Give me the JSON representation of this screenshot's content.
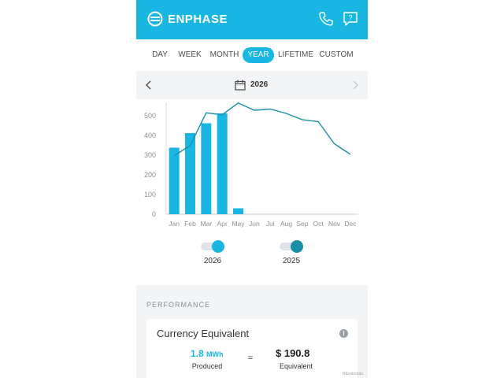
{
  "app": {
    "brand": "ENPHASE"
  },
  "header": {
    "icons": [
      "enphase-logo-icon",
      "phone-icon",
      "help-icon"
    ],
    "help_glyph": "?"
  },
  "tabs": [
    {
      "label": "DAY",
      "active": false
    },
    {
      "label": "WEEK",
      "active": false
    },
    {
      "label": "MONTH",
      "active": false
    },
    {
      "label": "YEAR",
      "active": true
    },
    {
      "label": "LIFETIME",
      "active": false
    },
    {
      "label": "CUSTOM",
      "active": false
    }
  ],
  "date_nav": {
    "year": "2026"
  },
  "chart_data": {
    "type": "bar",
    "categories": [
      "Jan",
      "Feb",
      "Mar",
      "Apr",
      "May",
      "Jun",
      "Jul",
      "Aug",
      "Sep",
      "Oct",
      "Nov",
      "Dec"
    ],
    "y_ticks": [
      "0",
      "100",
      "200",
      "300",
      "400",
      "500"
    ],
    "ylim": [
      0,
      600
    ],
    "series": [
      {
        "name": "2026",
        "type": "bar",
        "color": "#1ab6e2",
        "values": [
          338,
          412,
          462,
          512,
          30,
          null,
          null,
          null,
          null,
          null,
          null,
          null
        ]
      },
      {
        "name": "2025",
        "type": "line",
        "color": "#1a8fa8",
        "values": [
          297,
          349,
          515,
          505,
          565,
          528,
          534,
          512,
          480,
          470,
          358,
          304
        ]
      }
    ],
    "grid": false
  },
  "legend": [
    {
      "label": "2026",
      "color": "#1ab6e2"
    },
    {
      "label": "2025",
      "color": "#178fa6"
    }
  ],
  "performance": {
    "section_label": "PERFORMANCE",
    "card_title": "Currency Equivalent",
    "info_glyph": "i",
    "produced_value": "1.8",
    "produced_unit": "MWh",
    "produced_label": "Produced",
    "equals": "=",
    "equivalent_value": "$ 190.8",
    "equivalent_label": "Equivalent"
  },
  "watermark": "REcolorado"
}
